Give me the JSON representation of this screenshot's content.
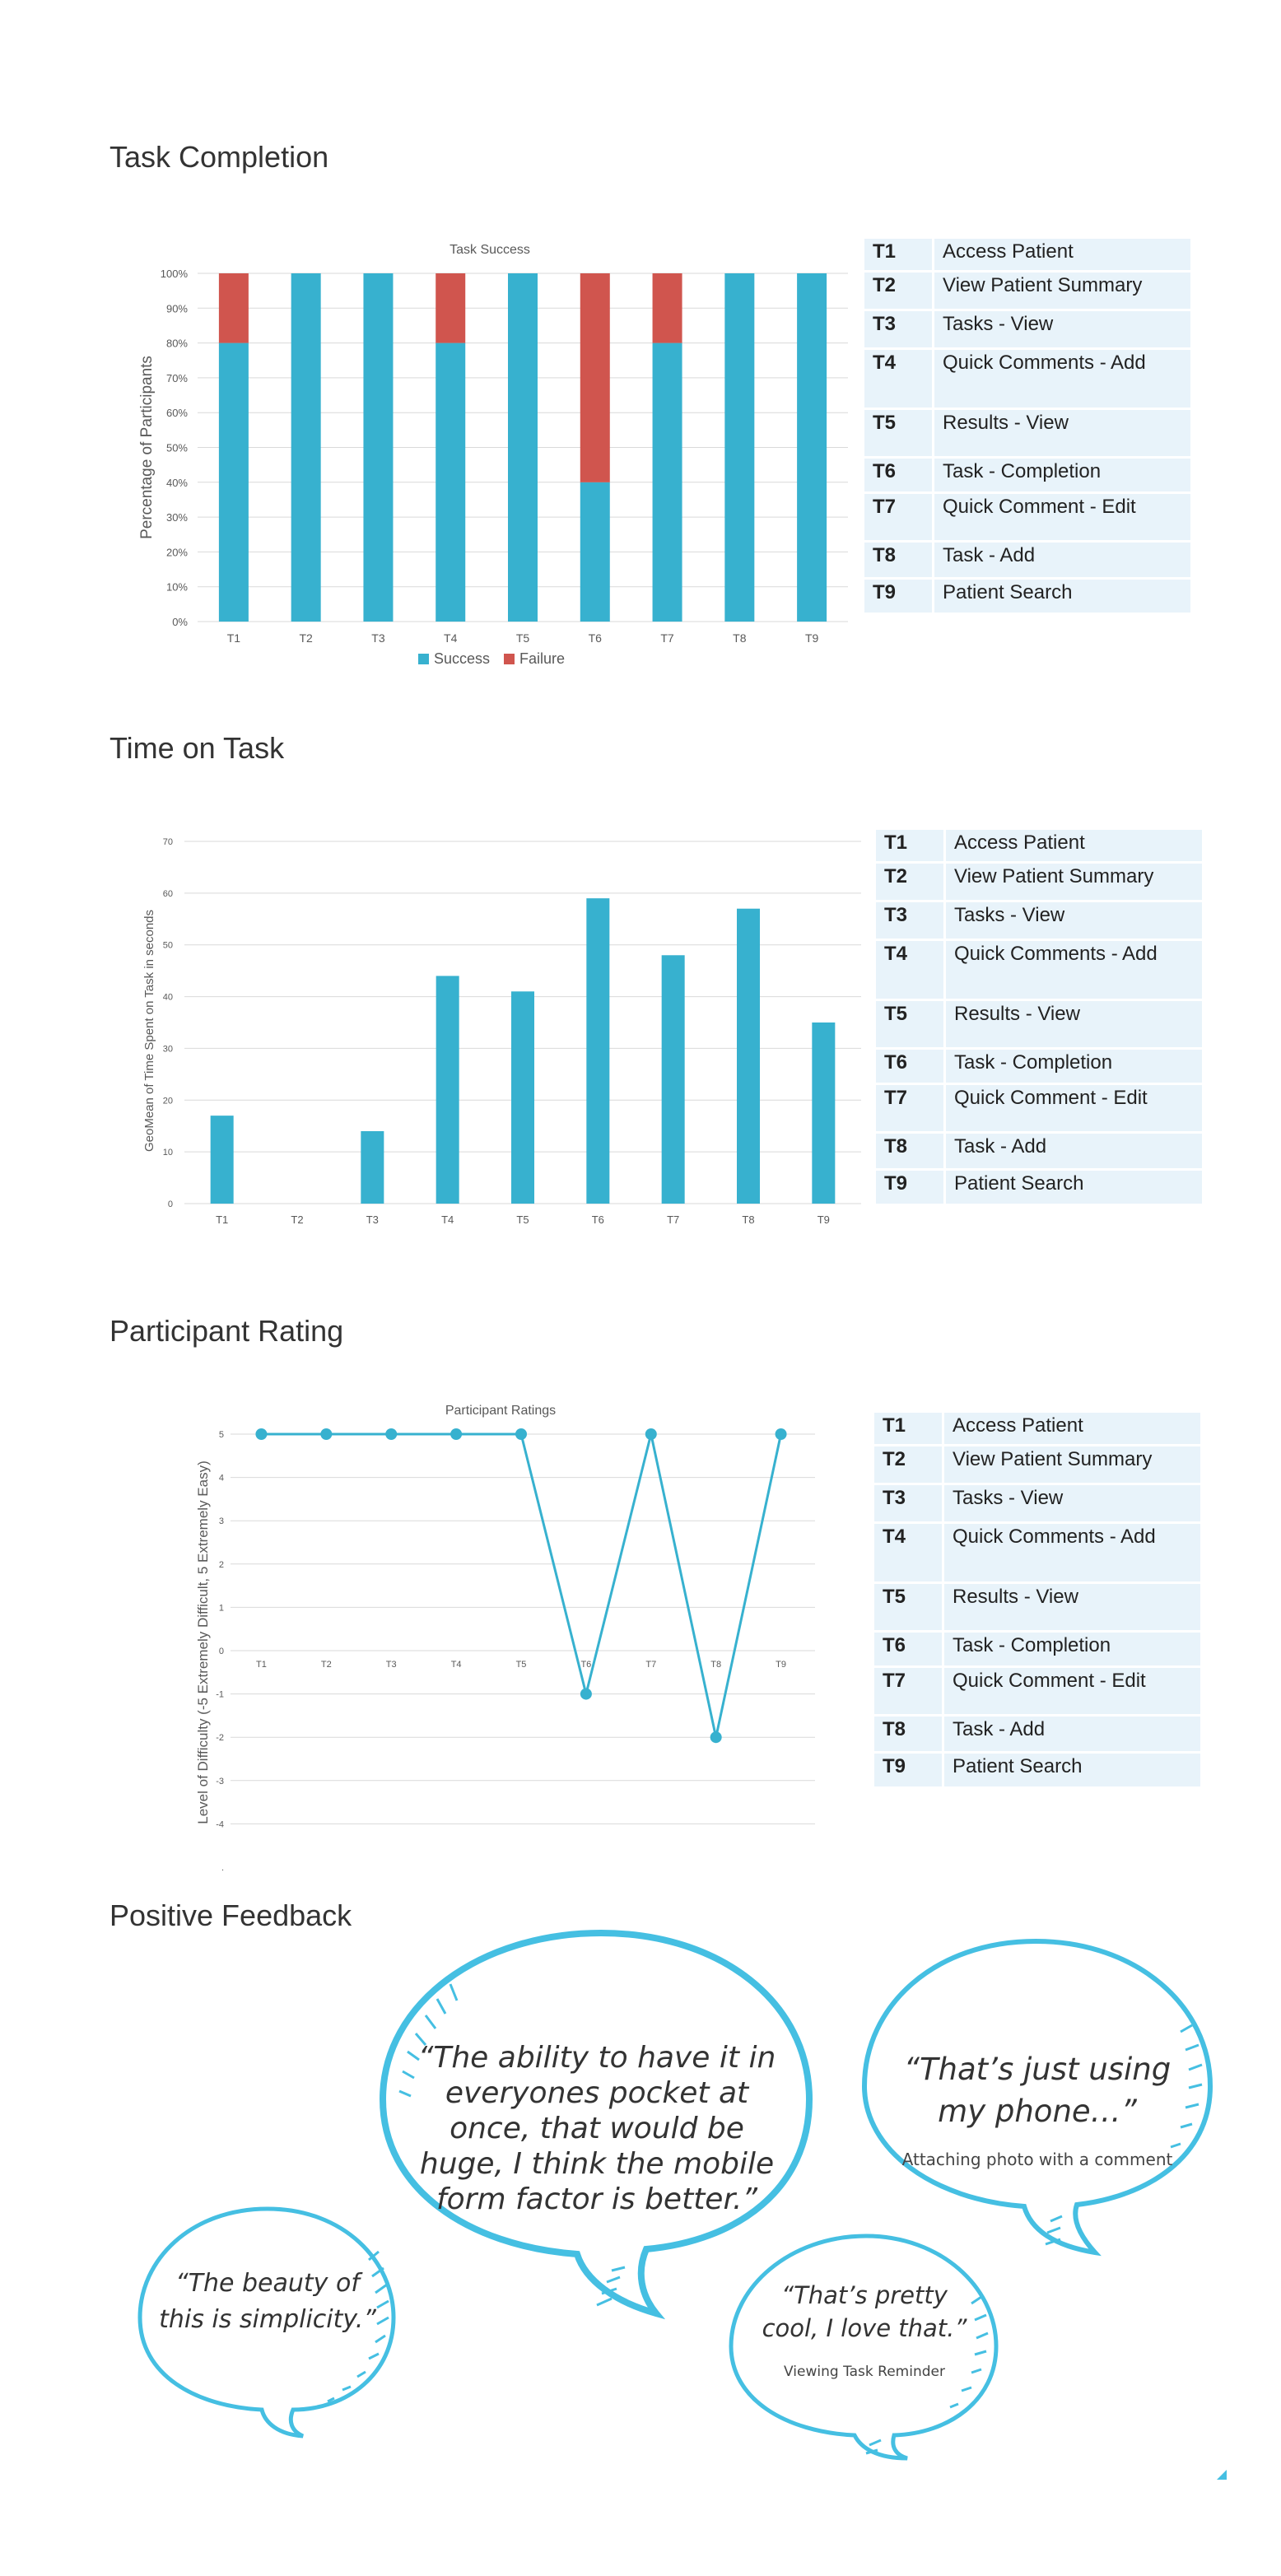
{
  "sections": {
    "task_completion": "Task Completion",
    "time_on_task": "Time on Task",
    "participant_rating": "Participant Rating",
    "positive_feedback": "Positive Feedback"
  },
  "tasks": [
    {
      "code": "T1",
      "name": "Access Patient"
    },
    {
      "code": "T2",
      "name": "View Patient Summary"
    },
    {
      "code": "T3",
      "name": "Tasks - View"
    },
    {
      "code": "T4",
      "name": "Quick Comments - Add"
    },
    {
      "code": "T5",
      "name": "Results - View"
    },
    {
      "code": "T6",
      "name": "Task - Completion"
    },
    {
      "code": "T7",
      "name": "Quick Comment - Edit"
    },
    {
      "code": "T8",
      "name": "Task - Add"
    },
    {
      "code": "T9",
      "name": "Patient Search"
    }
  ],
  "colors": {
    "success": "#37b1cf",
    "failure": "#d0554e",
    "bubble": "#45bfe2",
    "table_bg": "#e8f3fa"
  },
  "chart_data": [
    {
      "type": "bar",
      "stacked": true,
      "title": "Task Success",
      "ylabel": "Percentage of Participants",
      "xlabel": "",
      "categories": [
        "T1",
        "T2",
        "T3",
        "T4",
        "T5",
        "T6",
        "T7",
        "T8",
        "T9"
      ],
      "ylim": [
        0,
        100
      ],
      "yticks": [
        "0%",
        "10%",
        "20%",
        "30%",
        "40%",
        "50%",
        "60%",
        "70%",
        "80%",
        "90%",
        "100%"
      ],
      "series": [
        {
          "name": "Success",
          "values": [
            80,
            100,
            100,
            80,
            100,
            40,
            80,
            100,
            100
          ]
        },
        {
          "name": "Failure",
          "values": [
            20,
            0,
            0,
            20,
            0,
            60,
            20,
            0,
            0
          ]
        }
      ],
      "legend": "bottom",
      "grid": true
    },
    {
      "type": "bar",
      "title": "",
      "ylabel": "GeoMean of Time Spent on Task in seconds",
      "xlabel": "",
      "categories": [
        "T1",
        "T2",
        "T3",
        "T4",
        "T5",
        "T6",
        "T7",
        "T8",
        "T9"
      ],
      "ylim": [
        0,
        70
      ],
      "yticks": [
        "0",
        "10",
        "20",
        "30",
        "40",
        "50",
        "60",
        "70"
      ],
      "values": [
        17,
        0,
        14,
        44,
        41,
        59,
        48,
        57,
        35
      ],
      "grid": true
    },
    {
      "type": "line",
      "title": "Participant Ratings",
      "ylabel": "Level of Difficulty (-5 Extremely Difficult, 5 Extremely Easy)",
      "xlabel": "",
      "categories": [
        "T1",
        "T2",
        "T3",
        "T4",
        "T5",
        "T6",
        "T7",
        "T8",
        "T9"
      ],
      "ylim": [
        -5,
        5
      ],
      "yticks": [
        "-4",
        "-3",
        "-2",
        "-1",
        "0",
        "1",
        "2",
        "3",
        "4",
        "5"
      ],
      "values": [
        5,
        5,
        5,
        5,
        5,
        -1,
        5,
        -2,
        5
      ],
      "grid": true
    }
  ],
  "feedback": [
    {
      "quote": "“The beauty of this is simplicity.”",
      "caption": ""
    },
    {
      "quote": "“The ability to have it in everyones pocket at once, that would be huge, I think the mobile form factor is better.”",
      "caption": ""
    },
    {
      "quote": "“That’s just using my phone…”",
      "caption": "Attaching photo with a comment"
    },
    {
      "quote": "“That’s pretty cool, I love that.”",
      "caption": "Viewing Task Reminder"
    }
  ]
}
